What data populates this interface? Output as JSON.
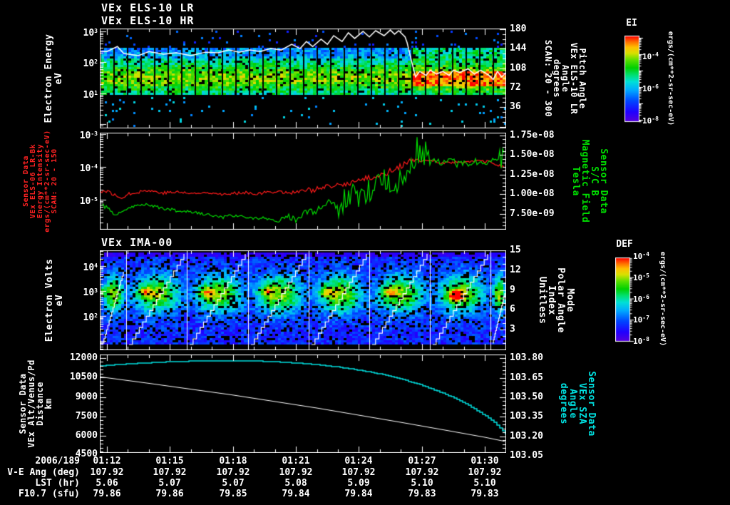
{
  "titles": {
    "els_lr": "VEx ELS-10 LR",
    "els_hr": "VEx ELS-10 HR",
    "ima": "VEx IMA-00"
  },
  "colors": {
    "background": "#000000",
    "axis": "#ffffff",
    "red_series": "#ff1a1a",
    "green_series": "#00dd00",
    "cyan_series": "#00e0e0",
    "red_label": "#ff2222",
    "green_label": "#00dd00",
    "cyan_label": "#00e0e0"
  },
  "panels": {
    "els": {
      "left_label_lines": [
        "Electron Energy",
        "eV"
      ],
      "left_ticks": [
        "10^3",
        "10^2",
        "10^1"
      ],
      "right_ticks": [
        "180",
        "144",
        "108",
        "72",
        "36"
      ],
      "right_label_lines": [
        "Pitch Angle",
        "VEx ELS-10 LR",
        "Angle",
        "degrees",
        "SCAN: 20 - 300"
      ],
      "colorbar": {
        "title": "EI",
        "ticks": [
          "10^-4",
          "10^-6",
          "10^-8"
        ],
        "units": "ergs/(cm**2-sr-sec-eV)"
      }
    },
    "mag": {
      "left_label_lines": [
        "Sensor Data",
        "VEx ELS-06 LR-Bk",
        "Energy Intensity",
        "ergs/(cm**2-sr-sec-eV)",
        "SCAN: 20 - 150"
      ],
      "left_ticks": [
        "10^-3",
        "10^-4",
        "10^-5"
      ],
      "right_ticks": [
        "1.75e-08",
        "1.50e-08",
        "1.25e-08",
        "1.00e-08",
        "7.50e-09"
      ],
      "right_label_lines": [
        "Sensor Data",
        "S/C B",
        "Magnetic Field",
        "Tesla"
      ]
    },
    "ima": {
      "left_label_lines": [
        "Electron Volts",
        "eV"
      ],
      "left_ticks": [
        "10^4",
        "10^3",
        "10^2"
      ],
      "right_ticks": [
        "15",
        "12",
        "9",
        "6",
        "3"
      ],
      "right_label_lines": [
        "Mode",
        "Polar Angle",
        "Index",
        "Unitless"
      ],
      "colorbar": {
        "title": "DEF",
        "ticks": [
          "10^-4",
          "10^-5",
          "10^-6",
          "10^-7",
          "10^-8"
        ],
        "units": "ergs/(cm**2-sr-sec-eV)"
      }
    },
    "eph": {
      "left_label_lines": [
        "Sensor Data",
        "VEx Alt/Venus/Pd",
        "Distance",
        "km"
      ],
      "left_ticks": [
        "12000",
        "10500",
        "9000",
        "7500",
        "6000",
        "4500"
      ],
      "right_ticks": [
        "103.80",
        "103.65",
        "103.50",
        "103.35",
        "103.20",
        "103.05"
      ],
      "right_label_lines": [
        "Sensor Data",
        "VEx SZA",
        "Angle",
        "degrees"
      ]
    }
  },
  "bottom_axis": {
    "date": "2006/189",
    "times": [
      "01:12",
      "01:15",
      "01:18",
      "01:21",
      "01:24",
      "01:27",
      "01:30"
    ],
    "rows": [
      {
        "label": "V-E Ang (deg)",
        "values": [
          "107.92",
          "107.92",
          "107.92",
          "107.92",
          "107.92",
          "107.92",
          "107.92"
        ]
      },
      {
        "label": "LST (hr)",
        "values": [
          "5.06",
          "5.07",
          "5.07",
          "5.08",
          "5.09",
          "5.10",
          "5.10"
        ]
      },
      {
        "label": "F10.7 (sfu)",
        "values": [
          "79.86",
          "79.86",
          "79.85",
          "79.84",
          "79.84",
          "79.83",
          "79.83"
        ]
      }
    ]
  },
  "chart_data": [
    {
      "id": "els_energy_spectrogram",
      "type": "heatmap",
      "title": "VEx ELS-10 LR / VEx ELS-10 HR electron energy spectrogram",
      "x_axis": {
        "label": "UT 2006/189",
        "start": "01:12",
        "end": "01:31",
        "major_ticks": [
          "01:12",
          "01:15",
          "01:18",
          "01:21",
          "01:24",
          "01:27",
          "01:30"
        ]
      },
      "y_axis": {
        "label": "Electron Energy (eV)",
        "scale": "log",
        "range_ev": [
          0.74,
          1230
        ],
        "major_ticks": [
          1000,
          100,
          10
        ]
      },
      "right_axis": {
        "label": "Pitch Angle (degrees) SCAN: 20 - 300",
        "range": [
          0,
          181
        ],
        "major_ticks": [
          180,
          144,
          108,
          72,
          36
        ]
      },
      "colorbar": {
        "title": "EI",
        "units": "ergs/(cm**2-sr-sec-eV)",
        "scale": "log",
        "tick_values": [
          0.0001,
          1e-06,
          1e-08
        ]
      },
      "features": {
        "main_band_ev": [
          8,
          300
        ],
        "peak_flux_ev": [
          20,
          60
        ],
        "intense_red_band": {
          "start_ut": "01:26:30",
          "ev_range": [
            15,
            80
          ]
        },
        "sparse_points": "scattered blue/cyan counts above and below main band",
        "column_gaps": "regular black sampling gaps ~38 s apart"
      },
      "white_trace_min_ev": [
        [
          -0.3,
          224
        ],
        [
          0,
          224
        ],
        [
          0.5,
          324
        ],
        [
          0.8,
          193
        ],
        [
          1.5,
          165
        ],
        [
          2,
          224
        ],
        [
          2.7,
          183
        ],
        [
          3.3,
          203
        ],
        [
          4,
          165
        ],
        [
          4.7,
          213
        ],
        [
          5.3,
          203
        ],
        [
          5.8,
          250
        ],
        [
          6.3,
          213
        ],
        [
          6.8,
          250
        ],
        [
          7.3,
          224
        ],
        [
          7.8,
          278
        ],
        [
          8.3,
          250
        ],
        [
          8.8,
          380
        ],
        [
          9.2,
          278
        ],
        [
          9.5,
          470
        ],
        [
          9.8,
          324
        ],
        [
          10.2,
          555
        ],
        [
          10.5,
          380
        ],
        [
          10.8,
          725
        ],
        [
          11.2,
          470
        ],
        [
          11.5,
          900
        ],
        [
          11.8,
          590
        ],
        [
          12.2,
          1000
        ],
        [
          12.5,
          660
        ],
        [
          12.8,
          1050
        ],
        [
          13.2,
          725
        ],
        [
          13.5,
          1100
        ],
        [
          13.7,
          810
        ],
        [
          13.9,
          1050
        ],
        [
          14.2,
          660
        ],
        [
          14.3,
          427
        ],
        [
          14.5,
          115
        ],
        [
          14.7,
          34
        ],
        [
          14.9,
          51
        ],
        [
          15.2,
          38
        ],
        [
          15.4,
          56
        ],
        [
          15.7,
          42
        ],
        [
          16,
          51
        ],
        [
          16.3,
          38
        ],
        [
          16.5,
          56
        ],
        [
          16.8,
          47
        ],
        [
          17.2,
          62
        ],
        [
          17.5,
          42
        ],
        [
          17.8,
          56
        ],
        [
          18.2,
          38
        ],
        [
          18.4,
          28
        ],
        [
          18.6,
          51
        ],
        [
          18.8,
          34
        ],
        [
          19.02,
          47
        ]
      ]
    },
    {
      "id": "mag_intensity",
      "type": "line",
      "x_axis": {
        "start": "01:12",
        "end": "01:31"
      },
      "y_left": {
        "label": "Energy Intensity ergs/(cm**2-sr-sec-eV)",
        "scale": "log",
        "ticks": [
          0.001,
          0.0001,
          1e-05
        ]
      },
      "y_right": {
        "label": "Magnetic Field (Tesla)",
        "scale": "linear",
        "ticks": [
          1.75e-08,
          1.5e-08,
          1.25e-08,
          1e-08,
          7.5e-09
        ]
      },
      "series": [
        {
          "name": "VEx ELS-06 LR-Bk Energy Intensity SCAN: 20 - 150",
          "color": "#ff1a1a",
          "axis": "left",
          "points_min_value": [
            [
              -0.3,
              1.8e-05
            ],
            [
              0,
              1.8e-05
            ],
            [
              0.6,
              1.1e-05
            ],
            [
              1.2,
              1.6e-05
            ],
            [
              1.9,
              1.9e-05
            ],
            [
              2.7,
              1.6e-05
            ],
            [
              3.4,
              1.7e-05
            ],
            [
              4.2,
              1.5e-05
            ],
            [
              4.9,
              1.7e-05
            ],
            [
              5.7,
              1.4e-05
            ],
            [
              6.5,
              1.7e-05
            ],
            [
              7.2,
              1.5e-05
            ],
            [
              8,
              1.8e-05
            ],
            [
              8.7,
              1.6e-05
            ],
            [
              9.5,
              1.9e-05
            ],
            [
              10.1,
              2.1e-05
            ],
            [
              10.6,
              2.4e-05
            ],
            [
              11.2,
              2.8e-05
            ],
            [
              11.8,
              3.5e-05
            ],
            [
              12.4,
              4.5e-05
            ],
            [
              12.9,
              5.2e-05
            ],
            [
              13.3,
              6.3e-05
            ],
            [
              13.7,
              8.9e-05
            ],
            [
              14.1,
              0.000112
            ],
            [
              14.4,
              0.000141
            ],
            [
              14.8,
              0.000158
            ],
            [
              15.2,
              0.000151
            ],
            [
              15.8,
              0.000141
            ],
            [
              16.3,
              0.000132
            ],
            [
              16.9,
              0.000141
            ],
            [
              17.5,
              0.000151
            ],
            [
              18.1,
              0.000141
            ],
            [
              18.4,
              0.000126
            ],
            [
              19.02,
              9e-05
            ]
          ]
        },
        {
          "name": "S/C B Magnetic Field",
          "color": "#00dd00",
          "axis": "right",
          "points_min_value": [
            [
              -0.3,
              8.5e-09
            ],
            [
              0,
              8.5e-09
            ],
            [
              0.4,
              7.2e-09
            ],
            [
              0.8,
              8e-09
            ],
            [
              1.3,
              8.5e-09
            ],
            [
              1.9,
              8.8e-09
            ],
            [
              2.5,
              8.3e-09
            ],
            [
              3,
              8e-09
            ],
            [
              3.8,
              7.8e-09
            ],
            [
              4.6,
              7.5e-09
            ],
            [
              5.3,
              7.2e-09
            ],
            [
              6.1,
              7.3e-09
            ],
            [
              6.8,
              7e-09
            ],
            [
              7.6,
              6.9e-09
            ],
            [
              8.2,
              6.6e-09
            ],
            [
              8.6,
              7.2e-09
            ],
            [
              8.9,
              6.8e-09
            ],
            [
              9.5,
              7.6e-09
            ],
            [
              10.1,
              8.1e-09
            ],
            [
              10.6,
              8.9e-09
            ],
            [
              11,
              8.3e-09
            ],
            [
              11.4,
              9.6e-09
            ],
            [
              11.8,
              1.01e-08
            ],
            [
              12.2,
              9.3e-09
            ],
            [
              12.5,
              1.06e-08
            ],
            [
              12.9,
              1.11e-08
            ],
            [
              13.3,
              1.19e-08
            ],
            [
              13.7,
              1.13e-08
            ],
            [
              14.1,
              1.26e-08
            ],
            [
              14.4,
              1.31e-08
            ],
            [
              14.8,
              1.46e-08
            ],
            [
              15.2,
              1.53e-08
            ],
            [
              15.6,
              1.43e-08
            ],
            [
              16,
              1.39e-08
            ],
            [
              16.4,
              1.43e-08
            ],
            [
              16.8,
              1.41e-08
            ],
            [
              17.2,
              1.39e-08
            ],
            [
              17.6,
              1.43e-08
            ],
            [
              18,
              1.41e-08
            ],
            [
              18.4,
              1.44e-08
            ],
            [
              18.8,
              1.41e-08
            ],
            [
              18.9,
              1.62e-08
            ],
            [
              19.02,
              6.2e-09
            ]
          ]
        }
      ]
    },
    {
      "id": "ima_spectrogram",
      "type": "heatmap",
      "title": "VEx IMA-00 ion spectrogram",
      "y_axis": {
        "label": "Electron Volts (eV)",
        "scale": "log",
        "range_ev": [
          4.3,
          42000
        ],
        "major_ticks": [
          10000,
          1000,
          100
        ]
      },
      "right_axis": {
        "label": "Mode / Polar Angle Index (Unitless)",
        "range": [
          0,
          15
        ],
        "major_ticks": [
          15,
          12,
          9,
          6,
          3
        ]
      },
      "colorbar": {
        "title": "DEF",
        "units": "ergs/(cm**2-sr-sec-eV)",
        "scale": "log",
        "tick_values": [
          0.0001,
          1e-05,
          1e-06,
          1e-07,
          1e-08
        ]
      },
      "features": {
        "burst_boundaries_min": [
          1.17,
          4.0,
          6.87,
          9.7,
          12.53,
          15.37,
          18.2
        ],
        "burst_centers_min": [
          0.6,
          2.6,
          5.4,
          8.3,
          11.1,
          13.9,
          16.8,
          18.6
        ],
        "peak_ev": 1000,
        "hotspot": "yellow-orange core just left of each burst centre near 1 keV; strongest (orange-red) in 6th full burst",
        "polar_scan": "white sawtooth ramp rises across each cycle (polar angle index sweep)"
      }
    },
    {
      "id": "ephemeris",
      "type": "line",
      "y_left": {
        "label": "VEx Alt/Venus/Pd Distance (km)",
        "ticks": [
          12000,
          10500,
          9000,
          7500,
          6000,
          4500
        ]
      },
      "y_right": {
        "label": "VEx SZA Angle (degrees)",
        "ticks": [
          103.8,
          103.65,
          103.5,
          103.35,
          103.2,
          103.05
        ]
      },
      "series": [
        {
          "name": "VEx Alt/Venus/Pd Distance",
          "units": "km",
          "color": "#ffffff",
          "axis": "left",
          "points_min_value": [
            [
              -0.34,
              10550
            ],
            [
              0,
              10480
            ],
            [
              2,
              10050
            ],
            [
              4,
              9600
            ],
            [
              6,
              9150
            ],
            [
              8,
              8650
            ],
            [
              10,
              8150
            ],
            [
              12,
              7600
            ],
            [
              14,
              7050
            ],
            [
              16,
              6480
            ],
            [
              18,
              5900
            ],
            [
              19.02,
              5560
            ]
          ]
        },
        {
          "name": "VEx SZA Angle",
          "units": "degrees",
          "color": "#00e0e0",
          "axis": "right",
          "points_min_value": [
            [
              -0.34,
              103.74
            ],
            [
              0,
              103.745
            ],
            [
              1,
              103.755
            ],
            [
              2,
              103.765
            ],
            [
              3,
              103.772
            ],
            [
              4,
              103.777
            ],
            [
              5,
              103.78
            ],
            [
              6,
              103.78
            ],
            [
              7,
              103.778
            ],
            [
              8,
              103.772
            ],
            [
              9,
              103.763
            ],
            [
              10,
              103.75
            ],
            [
              11,
              103.732
            ],
            [
              12,
              103.708
            ],
            [
              13,
              103.678
            ],
            [
              14,
              103.64
            ],
            [
              15,
              103.592
            ],
            [
              16,
              103.532
            ],
            [
              17,
              103.458
            ],
            [
              18,
              103.36
            ],
            [
              18.5,
              103.3
            ],
            [
              19.02,
              103.21
            ]
          ]
        }
      ]
    }
  ]
}
